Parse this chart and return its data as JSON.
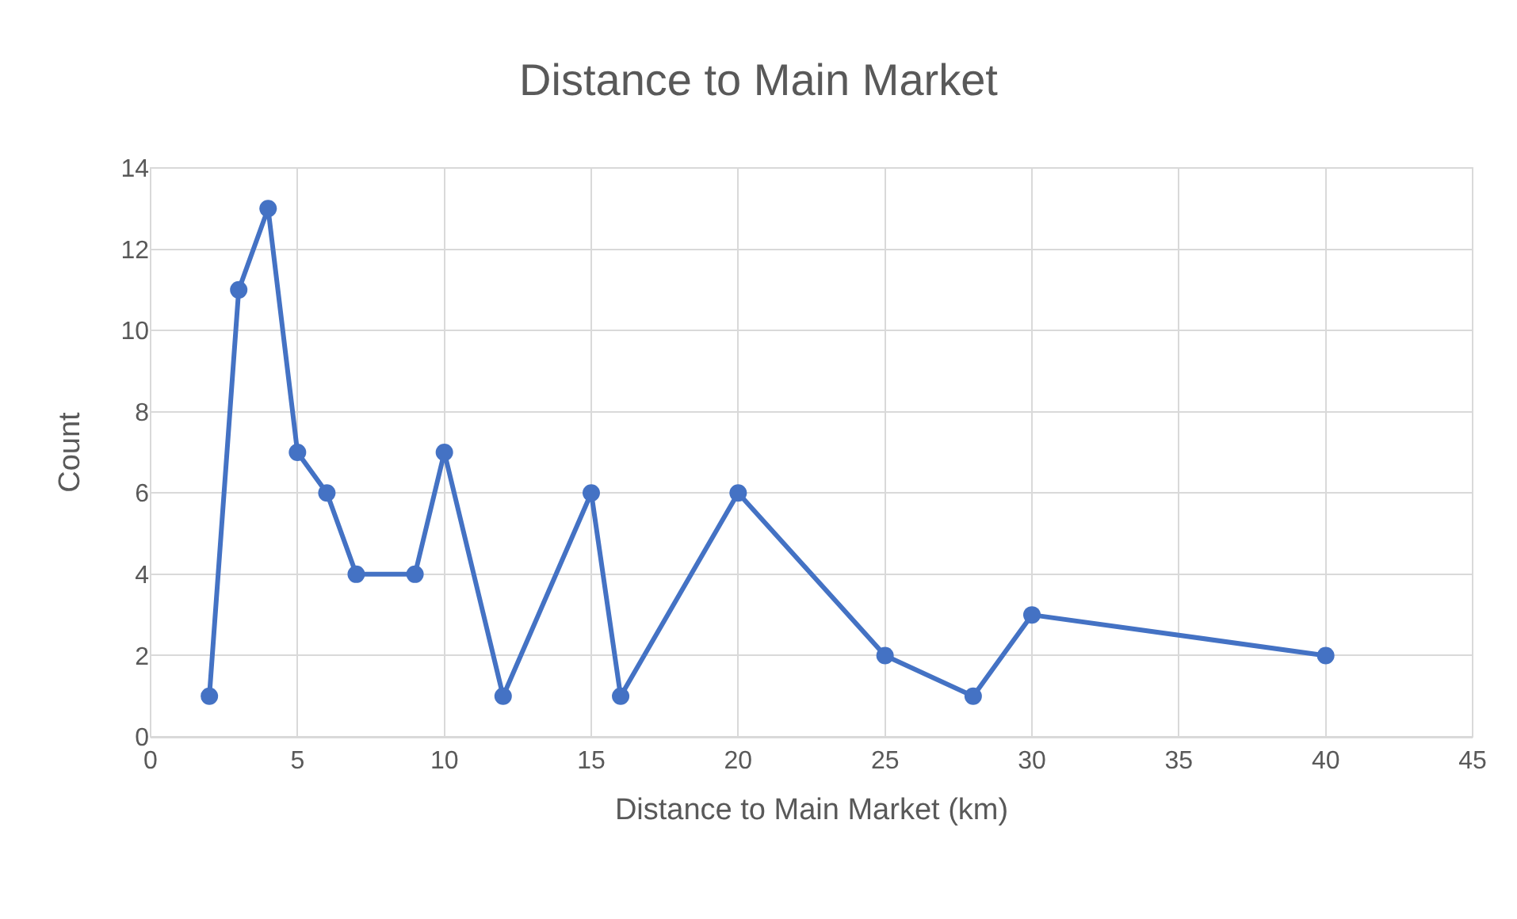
{
  "chart_data": {
    "type": "line",
    "title": "Distance to Main Market",
    "xlabel": "Distance to Main Market (km)",
    "ylabel": "Count",
    "x": [
      2,
      3,
      4,
      5,
      6,
      7,
      9,
      10,
      12,
      15,
      16,
      20,
      25,
      28,
      30,
      40
    ],
    "series": [
      {
        "color": "#4472c4",
        "values": [
          1,
          11,
          13,
          7,
          6,
          4,
          4,
          7,
          1,
          6,
          1,
          6,
          2,
          1,
          3,
          2
        ]
      }
    ],
    "xlim": [
      0,
      45
    ],
    "xticks": [
      0,
      5,
      10,
      15,
      20,
      25,
      30,
      35,
      40,
      45
    ],
    "ylim": [
      0,
      14
    ],
    "yticks": [
      0,
      2,
      4,
      6,
      8,
      10,
      12,
      14
    ],
    "grid": true,
    "marker": "circle",
    "line_style": "solid"
  }
}
